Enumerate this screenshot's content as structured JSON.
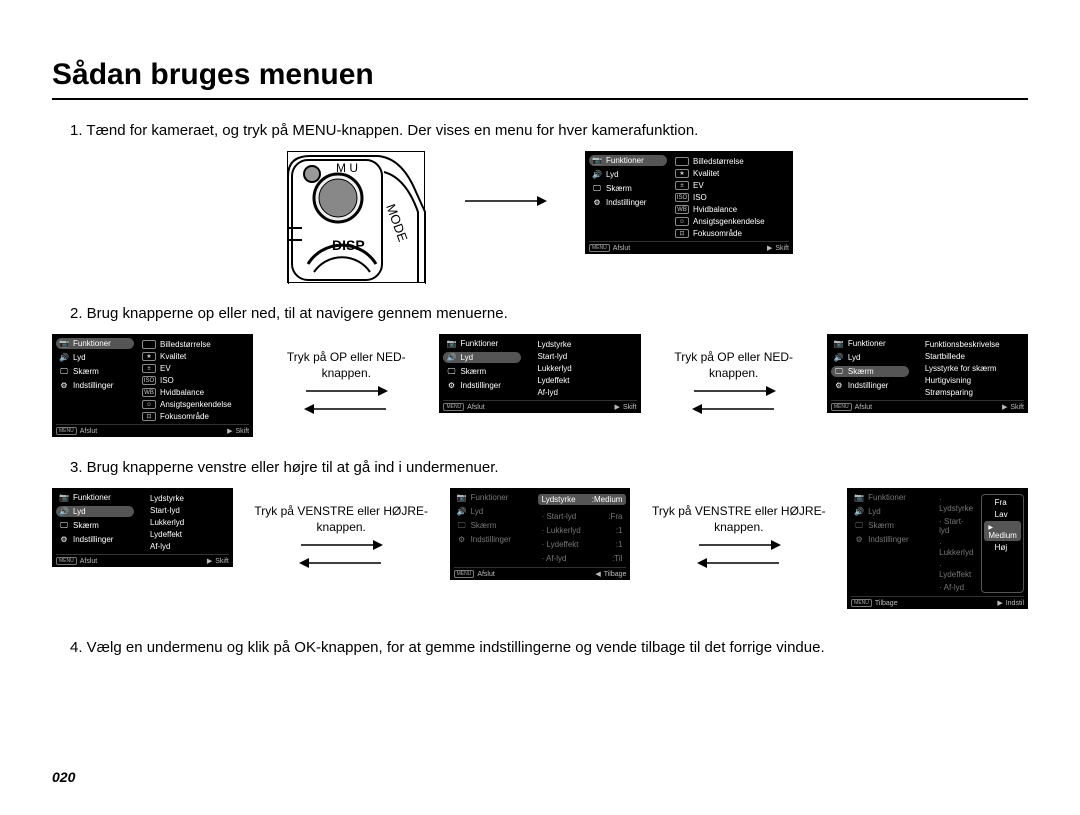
{
  "page": {
    "title": "Sådan bruges menuen",
    "number": "020"
  },
  "steps": {
    "s1": "1. Tænd for kameraet, og tryk på MENU-knappen.  Der vises en menu for hver kamerafunktion.",
    "s2": "2. Brug knapperne op eller ned, til at navigere gennem menuerne.",
    "s3": "3. Brug knapperne venstre eller højre til at gå ind i undermenuer.",
    "s4": "4. Vælg en undermenu og klik på OK-knappen, for at gemme indstillingerne og vende tilbage til det forrige vindue."
  },
  "connectors": {
    "updown": "Tryk på OP eller NED-knappen.",
    "leftright": "Tryk på VENSTRE eller HØJRE-knappen."
  },
  "camera": {
    "labels": {
      "mode": "MODE",
      "disp": "DISP",
      "mu": "M  U"
    }
  },
  "panelA": {
    "left": [
      {
        "icon": "📷",
        "label": "Funktioner",
        "sel": true
      },
      {
        "icon": "🔊",
        "label": "Lyd"
      },
      {
        "icon": "🖵",
        "label": "Skærm"
      },
      {
        "icon": "⚙",
        "label": "Indstillinger"
      }
    ],
    "right": [
      {
        "icon": "",
        "label": "Billedstørrelse"
      },
      {
        "icon": "★",
        "label": "Kvalitet"
      },
      {
        "icon": "±",
        "label": "EV"
      },
      {
        "icon": "ISO",
        "label": "ISO"
      },
      {
        "icon": "WB",
        "label": "Hvidbalance"
      },
      {
        "icon": "☺",
        "label": "Ansigtsgenkendelse"
      },
      {
        "icon": "⊡",
        "label": "Fokusområde"
      }
    ],
    "footer": {
      "left": "Afslut",
      "leftKey": "MENU",
      "right": "Skift",
      "rightArrow": "▶"
    }
  },
  "panelB": {
    "left": [
      {
        "icon": "📷",
        "label": "Funktioner"
      },
      {
        "icon": "🔊",
        "label": "Lyd",
        "sel": true
      },
      {
        "icon": "🖵",
        "label": "Skærm"
      },
      {
        "icon": "⚙",
        "label": "Indstillinger"
      }
    ],
    "right": [
      {
        "label": "Lydstyrke"
      },
      {
        "label": "Start-lyd"
      },
      {
        "label": "Lukkerlyd"
      },
      {
        "label": "Lydeffekt"
      },
      {
        "label": "Af-lyd"
      }
    ],
    "footer": {
      "left": "Afslut",
      "leftKey": "MENU",
      "right": "Skift",
      "rightArrow": "▶"
    }
  },
  "panelC": {
    "left": [
      {
        "icon": "📷",
        "label": "Funktioner"
      },
      {
        "icon": "🔊",
        "label": "Lyd"
      },
      {
        "icon": "🖵",
        "label": "Skærm",
        "sel": true
      },
      {
        "icon": "⚙",
        "label": "Indstillinger"
      }
    ],
    "right": [
      {
        "label": "Funktionsbeskrivelse"
      },
      {
        "label": "Startbillede"
      },
      {
        "label": "Lysstyrke for skærm"
      },
      {
        "label": "Hurtigvisning"
      },
      {
        "label": "Strømsparing"
      }
    ],
    "footer": {
      "left": "Afslut",
      "leftKey": "MENU",
      "right": "Skift",
      "rightArrow": "▶"
    }
  },
  "panelD": {
    "title": {
      "left": "Lydstyrke",
      "right": ":Medium"
    },
    "left": [
      {
        "icon": "📷",
        "label": "Funktioner",
        "dim": true
      },
      {
        "icon": "🔊",
        "label": "Lyd",
        "dim": true
      },
      {
        "icon": "🖵",
        "label": "Skærm",
        "dim": true
      },
      {
        "icon": "⚙",
        "label": "Indstillinger",
        "dim": true
      }
    ],
    "pairs": [
      {
        "k": "Start-lyd",
        "v": ":Fra"
      },
      {
        "k": "Lukkerlyd",
        "v": ":1"
      },
      {
        "k": "Lydeffekt",
        "v": ":1"
      },
      {
        "k": "Af-lyd",
        "v": ":Til"
      }
    ],
    "footer": {
      "left": "Afslut",
      "leftKey": "MENU",
      "right": "Tilbage",
      "rightArrow": "◀"
    }
  },
  "panelE": {
    "left": [
      {
        "icon": "📷",
        "label": "Funktioner",
        "dim": true
      },
      {
        "icon": "🔊",
        "label": "Lyd",
        "dim": true
      },
      {
        "icon": "🖵",
        "label": "Skærm",
        "dim": true
      },
      {
        "icon": "⚙",
        "label": "Indstillinger",
        "dim": true
      }
    ],
    "rightDim": [
      {
        "label": "Lydstyrke"
      },
      {
        "label": "Start-lyd"
      },
      {
        "label": "Lukkerlyd"
      },
      {
        "label": "Lydeffekt"
      },
      {
        "label": "Af-lyd"
      }
    ],
    "options": [
      {
        "label": "Fra"
      },
      {
        "label": "Lav"
      },
      {
        "label": "Medium",
        "sel": true
      },
      {
        "label": "Høj"
      }
    ],
    "footer": {
      "left": "Tilbage",
      "leftKey": "MENU",
      "right": "Indstil",
      "rightArrow": "▶"
    }
  }
}
